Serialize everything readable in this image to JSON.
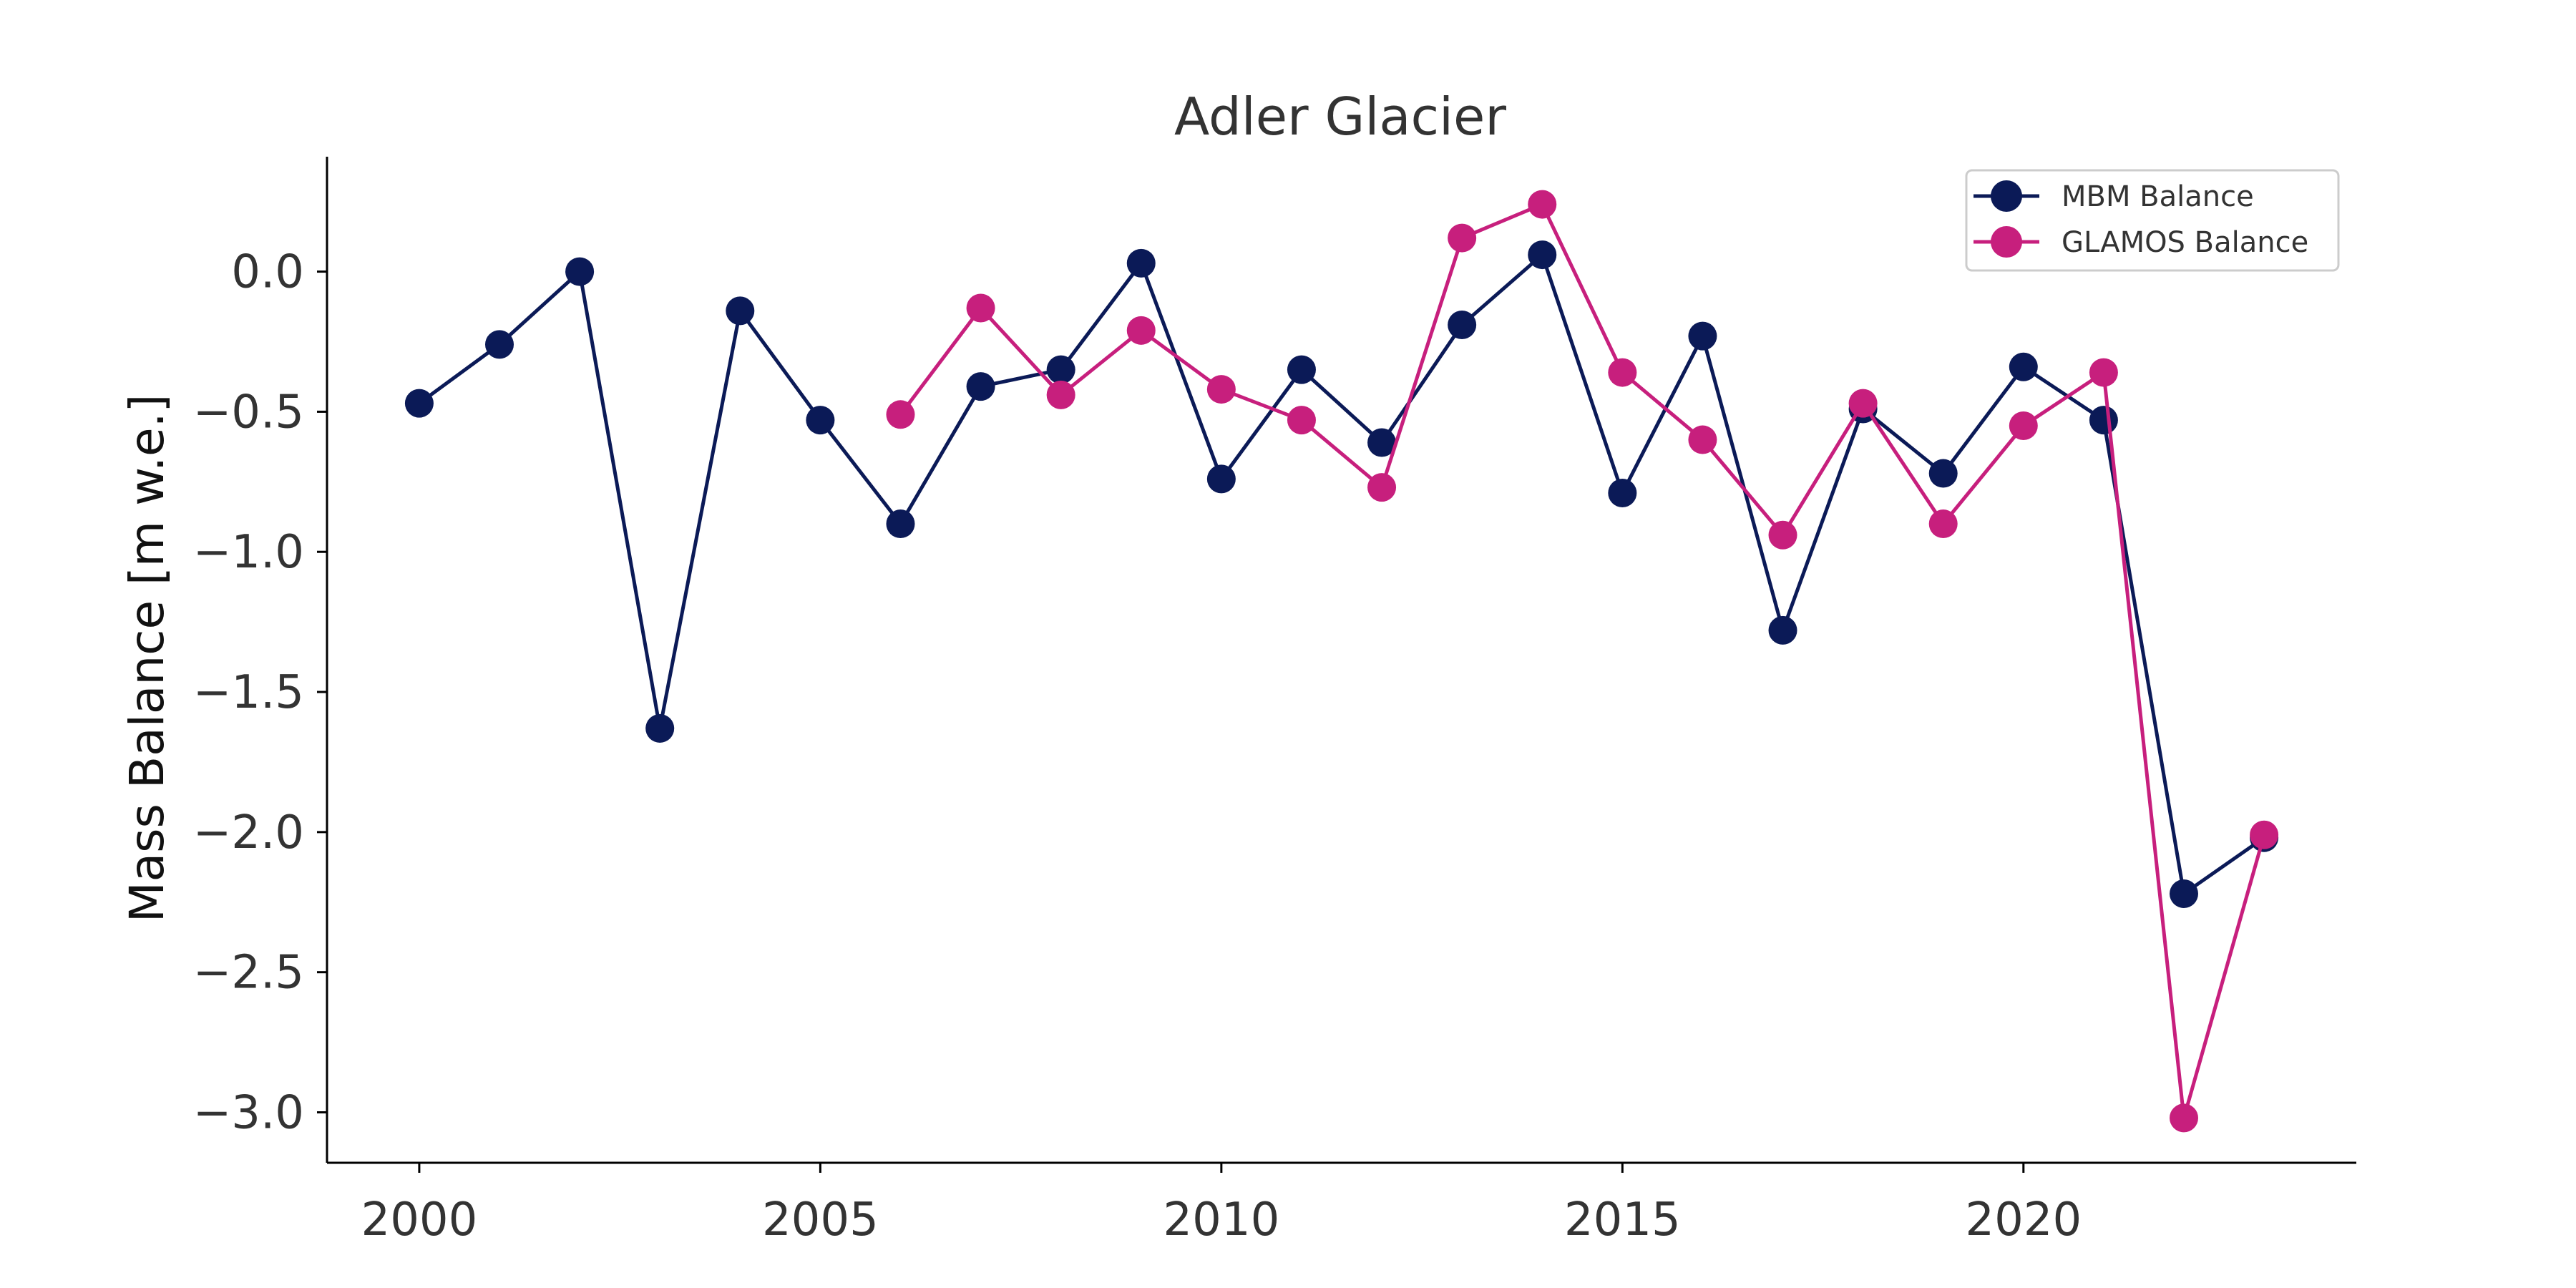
{
  "chart_data": {
    "type": "line",
    "title": "Adler Glacier",
    "xlabel": "",
    "ylabel": "Mass Balance [m w.e.]",
    "xlim": [
      1998.85,
      2024.15
    ],
    "ylim": [
      -3.18,
      0.41
    ],
    "xticks": [
      2000,
      2005,
      2010,
      2015,
      2020
    ],
    "xtick_labels": [
      "2000",
      "2005",
      "2010",
      "2015",
      "2020"
    ],
    "yticks": [
      0.0,
      -0.5,
      -1.0,
      -1.5,
      -2.0,
      -2.5,
      -3.0
    ],
    "ytick_labels": [
      "0.0",
      "−0.5",
      "−1.0",
      "−1.5",
      "−2.0",
      "−2.5",
      "−3.0"
    ],
    "grid": false,
    "legend_position": "top-right",
    "series": [
      {
        "name": "MBM Balance",
        "color": "#0b1a57",
        "x": [
          2000,
          2001,
          2002,
          2003,
          2004,
          2005,
          2006,
          2007,
          2008,
          2009,
          2010,
          2011,
          2012,
          2013,
          2014,
          2015,
          2016,
          2017,
          2018,
          2019,
          2020,
          2021,
          2022,
          2023
        ],
        "y": [
          -0.47,
          -0.26,
          0.0,
          -1.63,
          -0.14,
          -0.53,
          -0.9,
          -0.41,
          -0.35,
          0.03,
          -0.74,
          -0.35,
          -0.61,
          -0.19,
          0.06,
          -0.79,
          -0.23,
          -1.28,
          -0.49,
          -0.72,
          -0.34,
          -0.53,
          -2.22,
          -2.02
        ]
      },
      {
        "name": "GLAMOS Balance",
        "color": "#c71f7d",
        "x": [
          2006,
          2007,
          2008,
          2009,
          2010,
          2011,
          2012,
          2013,
          2014,
          2015,
          2016,
          2017,
          2018,
          2019,
          2020,
          2021,
          2022,
          2023
        ],
        "y": [
          -0.51,
          -0.13,
          -0.44,
          -0.21,
          -0.42,
          -0.53,
          -0.77,
          0.12,
          0.24,
          -0.36,
          -0.6,
          -0.94,
          -0.47,
          -0.9,
          -0.55,
          -0.36,
          -3.02,
          -2.01
        ]
      }
    ]
  }
}
